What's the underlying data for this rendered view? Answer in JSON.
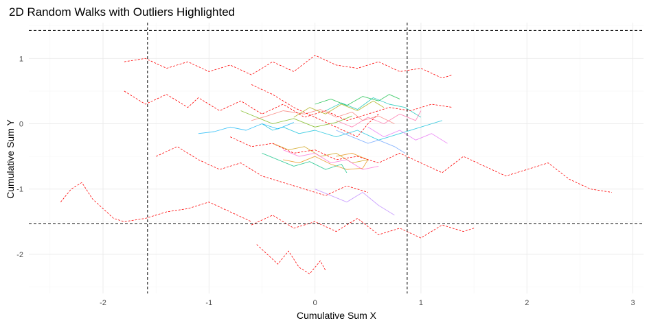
{
  "chart_data": {
    "type": "line",
    "title": "2D Random Walks with Outliers Highlighted",
    "xlabel": "Cumulative Sum X",
    "ylabel": "Cumulative Sum Y",
    "xlim": [
      -2.7,
      3.1
    ],
    "ylim": [
      -2.6,
      1.55
    ],
    "x_ticks": [
      -2,
      -1,
      0,
      1,
      2,
      3
    ],
    "y_ticks": [
      -2,
      -1,
      0,
      1
    ],
    "grid": true,
    "legend": "none",
    "threshold_lines": {
      "vertical": [
        -1.58,
        0.87
      ],
      "horizontal": [
        1.43,
        -1.53
      ],
      "style": "dashed",
      "color": "#000000"
    },
    "series": [
      {
        "role": "normal",
        "color": "#F8766D",
        "x": [
          -0.6,
          -0.45,
          -0.3,
          -0.1,
          0.05,
          0.2,
          0.35,
          0.45,
          0.6,
          0.75
        ],
        "y": [
          0.05,
          0.12,
          0.2,
          0.15,
          0.22,
          0.1,
          0.18,
          0.05,
          0.12,
          0.0
        ]
      },
      {
        "role": "normal",
        "color": "#E58700",
        "x": [
          -0.3,
          -0.15,
          0.0,
          0.15,
          0.3,
          0.45,
          0.5,
          0.35,
          0.2
        ],
        "y": [
          -0.55,
          -0.6,
          -0.5,
          -0.62,
          -0.7,
          -0.68,
          -0.55,
          -0.45,
          -0.5
        ]
      },
      {
        "role": "normal",
        "color": "#C99800",
        "x": [
          -0.4,
          -0.25,
          -0.1,
          0.05,
          0.2,
          0.35,
          0.5
        ],
        "y": [
          -0.3,
          -0.4,
          -0.35,
          -0.5,
          -0.45,
          -0.6,
          -0.55
        ]
      },
      {
        "role": "normal",
        "color": "#A3A500",
        "x": [
          -0.2,
          -0.05,
          0.1,
          0.25,
          0.4,
          0.55,
          0.65
        ],
        "y": [
          0.1,
          0.25,
          0.15,
          0.3,
          0.2,
          0.35,
          0.25
        ]
      },
      {
        "role": "normal",
        "color": "#6BB100",
        "x": [
          -0.7,
          -0.55,
          -0.4,
          -0.2,
          0.0,
          0.2,
          0.35
        ],
        "y": [
          0.2,
          0.1,
          0.0,
          0.08,
          -0.05,
          0.02,
          0.12
        ]
      },
      {
        "role": "normal",
        "color": "#00BA38",
        "x": [
          0.0,
          0.15,
          0.3,
          0.45,
          0.6,
          0.7,
          0.8
        ],
        "y": [
          0.3,
          0.38,
          0.28,
          0.42,
          0.35,
          0.45,
          0.38
        ]
      },
      {
        "role": "normal",
        "color": "#00BF7D",
        "x": [
          -0.5,
          -0.35,
          -0.2,
          -0.05,
          0.1,
          0.25,
          0.3
        ],
        "y": [
          -0.45,
          -0.55,
          -0.65,
          -0.58,
          -0.7,
          -0.62,
          -0.75
        ]
      },
      {
        "role": "normal",
        "color": "#00C0AF",
        "x": [
          0.1,
          0.25,
          0.4,
          0.55,
          0.7,
          0.85,
          1.0
        ],
        "y": [
          0.2,
          0.32,
          0.22,
          0.4,
          0.3,
          0.25,
          0.1
        ]
      },
      {
        "role": "normal",
        "color": "#00BCD8",
        "x": [
          -0.5,
          -0.4,
          -0.3,
          -0.15,
          0.0,
          0.2,
          0.4,
          0.6,
          0.8,
          1.0,
          1.2
        ],
        "y": [
          0.0,
          -0.1,
          -0.05,
          -0.15,
          -0.1,
          -0.2,
          -0.1,
          -0.25,
          -0.15,
          -0.05,
          0.05
        ]
      },
      {
        "role": "normal",
        "color": "#00B0F6",
        "x": [
          -1.1,
          -0.95,
          -0.8,
          -0.65,
          -0.5,
          -0.35,
          -0.2
        ],
        "y": [
          -0.15,
          -0.12,
          -0.05,
          -0.1,
          0.0,
          -0.08,
          0.02
        ]
      },
      {
        "role": "normal",
        "color": "#619CFF",
        "x": [
          0.2,
          0.35,
          0.5,
          0.6,
          0.75,
          0.85
        ],
        "y": [
          -0.1,
          -0.2,
          -0.3,
          -0.25,
          -0.35,
          -0.45
        ]
      },
      {
        "role": "normal",
        "color": "#B983FF",
        "x": [
          0.0,
          0.15,
          0.3,
          0.45,
          0.6,
          0.75
        ],
        "y": [
          -1.0,
          -1.1,
          -1.2,
          -1.05,
          -1.25,
          -1.4
        ]
      },
      {
        "role": "normal",
        "color": "#E76BF3",
        "x": [
          0.5,
          0.65,
          0.8,
          0.95,
          1.1,
          1.25
        ],
        "y": [
          -0.05,
          -0.2,
          -0.1,
          -0.25,
          -0.15,
          -0.3
        ]
      },
      {
        "role": "normal",
        "color": "#FD61D1",
        "x": [
          -0.3,
          -0.15,
          0.0,
          0.15,
          0.3,
          0.45,
          0.6
        ],
        "y": [
          -0.4,
          -0.5,
          -0.45,
          -0.6,
          -0.55,
          -0.7,
          -0.65
        ]
      },
      {
        "role": "normal",
        "color": "#FF67A4",
        "x": [
          0.2,
          0.35,
          0.5,
          0.65,
          0.8,
          0.95,
          1.0
        ],
        "y": [
          0.05,
          -0.05,
          0.1,
          0.0,
          0.15,
          0.05,
          0.2
        ]
      },
      {
        "role": "outlier",
        "color": "#FF0000",
        "x": [
          -1.8,
          -1.6,
          -1.4,
          -1.2,
          -1.0,
          -0.8,
          -0.6,
          -0.4,
          -0.2,
          0.0,
          0.2,
          0.4,
          0.6,
          0.8,
          1.0,
          1.2,
          1.3
        ],
        "y": [
          0.95,
          1.0,
          0.85,
          0.95,
          0.8,
          0.9,
          0.75,
          0.95,
          0.8,
          1.05,
          0.9,
          0.85,
          0.95,
          0.8,
          0.85,
          0.7,
          0.75
        ]
      },
      {
        "role": "outlier",
        "color": "#FF0000",
        "x": [
          -1.8,
          -1.6,
          -1.4,
          -1.2,
          -1.1,
          -0.9,
          -0.7,
          -0.5,
          -0.3,
          -0.1,
          0.1,
          0.3,
          0.5,
          0.7,
          0.9,
          1.1,
          1.3
        ],
        "y": [
          0.5,
          0.3,
          0.45,
          0.25,
          0.4,
          0.2,
          0.35,
          0.15,
          0.3,
          0.1,
          0.2,
          0.05,
          0.15,
          0.25,
          0.2,
          0.3,
          0.25
        ]
      },
      {
        "role": "outlier",
        "color": "#FF0000",
        "x": [
          -0.8,
          -0.6,
          -0.4,
          -0.2,
          0.0,
          0.2,
          0.4,
          0.6,
          0.8,
          1.0,
          1.2,
          1.4,
          1.6,
          1.8,
          2.0,
          2.2,
          2.4,
          2.6,
          2.8
        ],
        "y": [
          -0.2,
          -0.35,
          -0.3,
          -0.45,
          -0.4,
          -0.55,
          -0.5,
          -0.6,
          -0.45,
          -0.6,
          -0.75,
          -0.5,
          -0.65,
          -0.8,
          -0.7,
          -0.6,
          -0.85,
          -1.0,
          -1.05
        ]
      },
      {
        "role": "outlier",
        "color": "#FF0000",
        "x": [
          -2.4,
          -2.3,
          -2.2,
          -2.1,
          -2.0,
          -1.9,
          -1.8,
          -1.6,
          -1.4,
          -1.2,
          -1.0,
          -0.8,
          -0.6
        ],
        "y": [
          -1.2,
          -1.0,
          -0.9,
          -1.15,
          -1.3,
          -1.45,
          -1.5,
          -1.45,
          -1.35,
          -1.3,
          -1.2,
          -1.35,
          -1.5
        ]
      },
      {
        "role": "outlier",
        "color": "#FF0000",
        "x": [
          -0.6,
          -0.4,
          -0.2,
          0.0,
          0.2,
          0.4,
          0.6,
          0.8,
          1.0,
          1.2,
          1.4,
          1.5
        ],
        "y": [
          -1.55,
          -1.4,
          -1.6,
          -1.5,
          -1.65,
          -1.45,
          -1.7,
          -1.6,
          -1.75,
          -1.55,
          -1.65,
          -1.6
        ]
      },
      {
        "role": "outlier",
        "color": "#FF0000",
        "x": [
          -0.55,
          -0.45,
          -0.35,
          -0.25,
          -0.15,
          -0.05,
          0.05,
          0.1
        ],
        "y": [
          -1.85,
          -2.0,
          -2.15,
          -1.95,
          -2.2,
          -2.3,
          -2.1,
          -2.25
        ]
      },
      {
        "role": "outlier",
        "color": "#FF0000",
        "x": [
          -1.5,
          -1.3,
          -1.1,
          -0.9,
          -0.7,
          -0.5,
          -0.3,
          -0.1,
          0.1,
          0.3,
          0.5
        ],
        "y": [
          -0.5,
          -0.35,
          -0.55,
          -0.7,
          -0.6,
          -0.8,
          -0.9,
          -1.0,
          -1.1,
          -0.95,
          -1.05
        ]
      },
      {
        "role": "outlier",
        "color": "#FF0000",
        "x": [
          -0.6,
          -0.4,
          -0.2,
          0.0,
          0.2,
          0.4,
          0.5,
          0.6
        ],
        "y": [
          0.6,
          0.45,
          0.25,
          0.1,
          -0.05,
          -0.2,
          0.0,
          0.15
        ]
      }
    ]
  }
}
